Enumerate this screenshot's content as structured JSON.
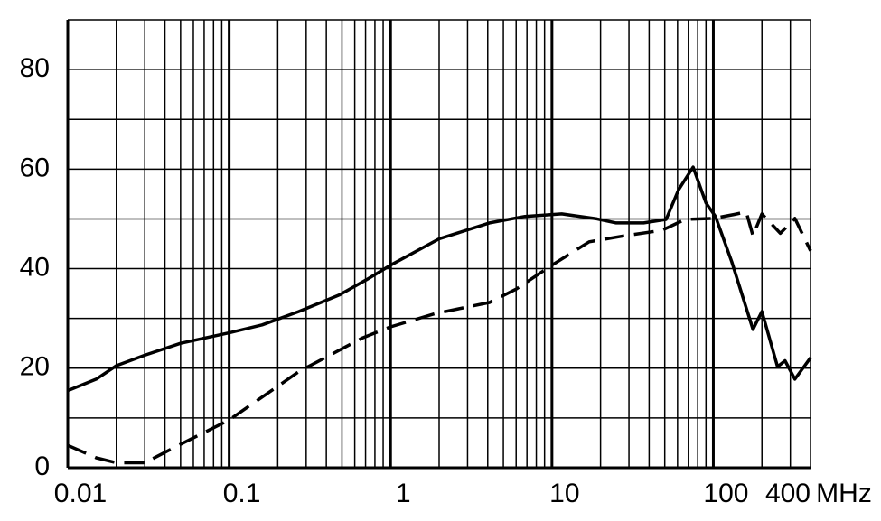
{
  "chart_data": {
    "type": "line",
    "x_label": "MHz",
    "xscale": "log",
    "xlim": [
      0.01,
      400
    ],
    "xticks": [
      0.01,
      0.1,
      1,
      10,
      100,
      400
    ],
    "xminor": [
      0.02,
      0.03,
      0.04,
      0.05,
      0.06,
      0.07,
      0.08,
      0.09,
      0.2,
      0.3,
      0.4,
      0.5,
      0.6,
      0.7,
      0.8,
      0.9,
      2,
      3,
      4,
      5,
      6,
      7,
      8,
      9,
      20,
      30,
      40,
      50,
      60,
      70,
      80,
      90,
      200,
      300
    ],
    "ylim": [
      0,
      90
    ],
    "yticks": [
      0,
      20,
      40,
      60,
      80
    ],
    "yminor": [
      10,
      30,
      50,
      70,
      90
    ],
    "grid": true,
    "series": [
      {
        "color": "#000000",
        "style": "solid",
        "x": [
          0.01,
          0.015,
          0.02,
          0.03,
          0.05,
          0.1,
          0.16,
          0.27,
          0.48,
          0.71,
          1,
          2,
          4.1,
          6.8,
          11.5,
          19,
          25,
          37,
          51,
          61,
          75,
          90,
          103,
          130,
          176,
          200,
          250,
          278,
          320,
          400
        ],
        "values": [
          15.5,
          17.8,
          20.5,
          22.6,
          25,
          27.1,
          28.7,
          31.4,
          34.7,
          37.8,
          40.7,
          46,
          49.2,
          50.5,
          51,
          50,
          49.2,
          49.2,
          49.9,
          55.9,
          60.4,
          53.2,
          50.5,
          41.4,
          27.8,
          31.4,
          20.3,
          21.5,
          17.8,
          22.1
        ]
      },
      {
        "color": "#000000",
        "style": "dashed",
        "x": [
          0.01,
          0.015,
          0.02,
          0.03,
          0.05,
          0.1,
          0.27,
          0.67,
          1,
          1.9,
          4.1,
          6,
          10,
          17,
          28,
          48,
          67,
          100,
          135,
          160,
          176,
          200,
          260,
          320,
          400
        ],
        "values": [
          4.5,
          2,
          1,
          1,
          4.7,
          9.6,
          19.3,
          26.1,
          28.3,
          31,
          33.2,
          35.9,
          40.7,
          45.4,
          46.6,
          47.7,
          49.9,
          50.1,
          50.9,
          51.4,
          46.6,
          51,
          47.1,
          50.1,
          43.6
        ]
      }
    ]
  }
}
